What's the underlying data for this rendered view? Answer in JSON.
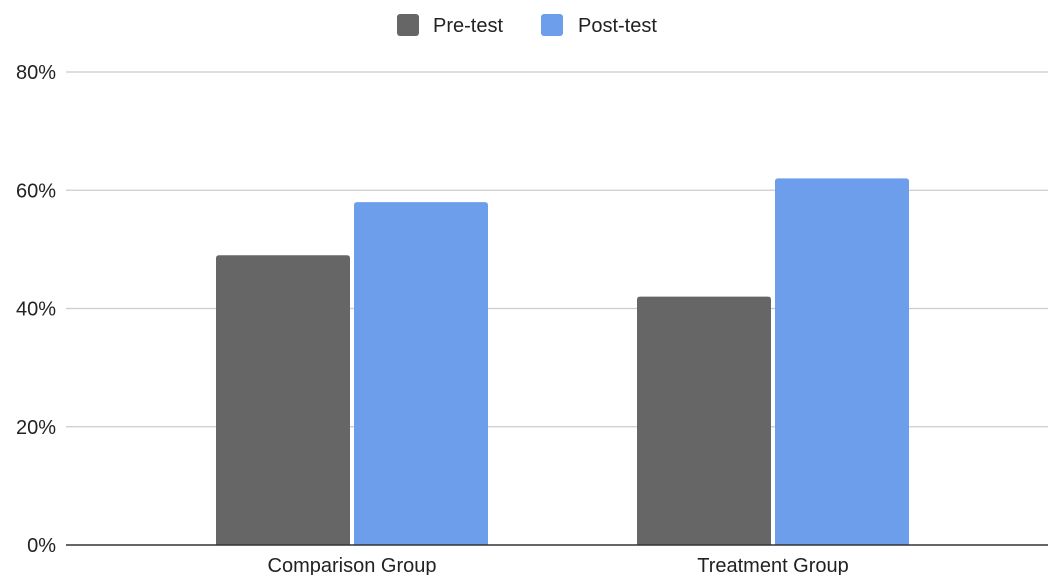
{
  "chart_data": {
    "type": "bar",
    "categories": [
      "Comparison Group",
      "Treatment Group"
    ],
    "series": [
      {
        "name": "Pre-test",
        "values": [
          49,
          42
        ],
        "color": "#666666"
      },
      {
        "name": "Post-test",
        "values": [
          58,
          62
        ],
        "color": "#6d9eeb"
      }
    ],
    "ylim": [
      0,
      80
    ],
    "yticks": [
      0,
      20,
      40,
      60,
      80
    ],
    "ytick_labels": [
      "0%",
      "20%",
      "40%",
      "60%",
      "80%"
    ],
    "title": "",
    "xlabel": "",
    "ylabel": "",
    "grid": true,
    "legend_position": "top-center",
    "colors": {
      "gridline": "#cccccc",
      "axis": "#333333",
      "text": "#222222"
    }
  }
}
